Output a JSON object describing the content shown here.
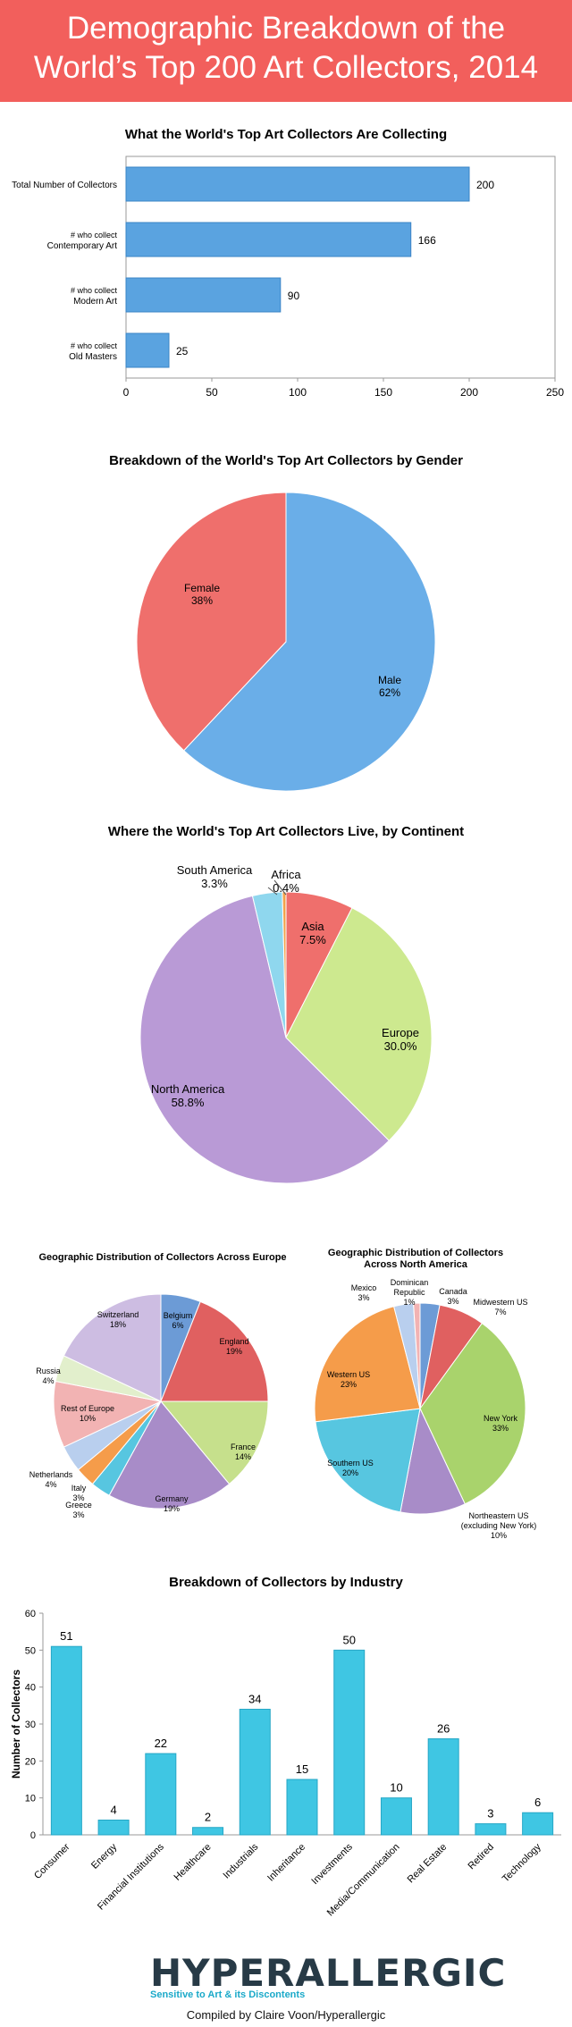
{
  "header": {
    "line1": "Demographic Breakdown of the",
    "line2": "World’s Top 200 Art Collectors, 2014"
  },
  "charts": {
    "collecting": {
      "type": "bar",
      "title": "What the World's Top Art Collectors Are Collecting",
      "categories": [
        [
          "Total Number of Collectors"
        ],
        [
          "# who collect",
          "Contemporary Art"
        ],
        [
          "# who collect",
          "Modern Art"
        ],
        [
          "# who collect",
          "Old Masters"
        ]
      ],
      "values": [
        200,
        166,
        90,
        25
      ],
      "xticks": [
        0,
        50,
        100,
        150,
        200,
        250
      ],
      "xlim": [
        0,
        250
      ],
      "color": "#5aa3e0"
    },
    "gender": {
      "type": "pie",
      "title": "Breakdown of the World's Top Art Collectors by Gender",
      "slices": [
        {
          "label": "Male",
          "pct": "62%",
          "value": 62,
          "color": "#6aaee8"
        },
        {
          "label": "Female",
          "pct": "38%",
          "value": 38,
          "color": "#ef6f6c"
        }
      ]
    },
    "continent": {
      "type": "pie",
      "title": "Where the World's Top Art Collectors Live, by Continent",
      "slices": [
        {
          "label": "Asia",
          "pct": "7.5%",
          "value": 7.5,
          "color": "#ef6f6c"
        },
        {
          "label": "Europe",
          "pct": "30.0%",
          "value": 30.0,
          "color": "#cde98f"
        },
        {
          "label": "North America",
          "pct": "58.8%",
          "value": 58.8,
          "color": "#b99ad6"
        },
        {
          "label": "South America",
          "pct": "3.3%",
          "value": 3.3,
          "color": "#8fd7ee"
        },
        {
          "label": "Africa",
          "pct": "0.4%",
          "value": 0.4,
          "color": "#f2a24a"
        }
      ]
    },
    "europe": {
      "type": "pie",
      "title": "Geographic Distribution of Collectors Across Europe",
      "slices": [
        {
          "label": "Belgium",
          "pct": "6%",
          "value": 6,
          "color": "#6c9bd6"
        },
        {
          "label": "England",
          "pct": "19%",
          "value": 19,
          "color": "#e06060"
        },
        {
          "label": "France",
          "pct": "14%",
          "value": 14,
          "color": "#c6e08c"
        },
        {
          "label": "Germany",
          "pct": "19%",
          "value": 19,
          "color": "#a88cc8"
        },
        {
          "label": "Greece",
          "pct": "3%",
          "value": 3,
          "color": "#57c6e0"
        },
        {
          "label": "Italy",
          "pct": "3%",
          "value": 3,
          "color": "#f59c4a"
        },
        {
          "label": "Netherlands",
          "pct": "4%",
          "value": 4,
          "color": "#b9cfee"
        },
        {
          "label": "Rest of Europe",
          "pct": "10%",
          "value": 10,
          "color": "#f2b3b3"
        },
        {
          "label": "Russia",
          "pct": "4%",
          "value": 4,
          "color": "#e2efcc"
        },
        {
          "label": "Switzerland",
          "pct": "18%",
          "value": 18,
          "color": "#cdbde2"
        }
      ]
    },
    "northamerica": {
      "type": "pie",
      "title": "Geographic Distribution of Collectors Across North America",
      "slices": [
        {
          "label": "Canada",
          "pct": "3%",
          "value": 3,
          "color": "#6c9bd6"
        },
        {
          "label": "Midwestern US",
          "pct": "7%",
          "value": 7,
          "color": "#e06060"
        },
        {
          "label": "New York",
          "pct": "33%",
          "value": 33,
          "color": "#a9d36c"
        },
        {
          "label": "Northeastern US (excluding New York)",
          "pct": "10%",
          "value": 10,
          "color": "#a88cc8"
        },
        {
          "label": "Southern US",
          "pct": "20%",
          "value": 20,
          "color": "#57c6e0"
        },
        {
          "label": "Western US",
          "pct": "23%",
          "value": 23,
          "color": "#f59c4a"
        },
        {
          "label": "Mexico",
          "pct": "3%",
          "value": 3,
          "color": "#b9cfee"
        },
        {
          "label": "Dominican Republic",
          "pct": "1%",
          "value": 1,
          "color": "#f2b3b3"
        }
      ]
    },
    "industry": {
      "type": "bar",
      "title": "Breakdown of Collectors by Industry",
      "ylabel": "Number of Collectors",
      "categories": [
        "Consumer",
        "Energy",
        "Financial Institutions",
        "Healthcare",
        "Industrials",
        "Inheritance",
        "Investments",
        "Media/Communication",
        "Real Estate",
        "Retired",
        "Technology"
      ],
      "values": [
        51,
        4,
        22,
        2,
        34,
        15,
        50,
        10,
        26,
        3,
        6
      ],
      "yticks": [
        0,
        10,
        20,
        30,
        40,
        50,
        60
      ],
      "ylim": [
        0,
        60
      ],
      "color": "#3fc6e3"
    }
  },
  "footer": {
    "logo": "HYPERALLERGIC",
    "tagline": "Sensitive to Art & its Discontents",
    "credit": "Compiled by Claire Voon/Hyperallergic"
  }
}
